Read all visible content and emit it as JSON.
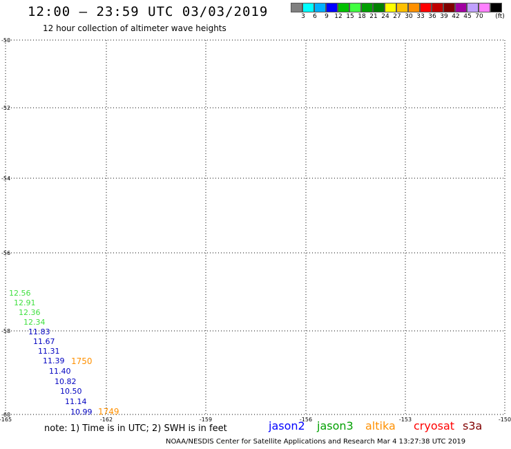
{
  "header": {
    "title": "12:00 – 23:59 UTC 03/03/2019",
    "subtitle": "12 hour collection of altimeter wave heights"
  },
  "legend": {
    "unit": "(ft)",
    "items": [
      {
        "color": "#808080",
        "label": ""
      },
      {
        "color": "#00ffff",
        "label": "3"
      },
      {
        "color": "#00b0ff",
        "label": "6"
      },
      {
        "color": "#0000ff",
        "label": "9"
      },
      {
        "color": "#00c000",
        "label": "12"
      },
      {
        "color": "#40ff40",
        "label": "15"
      },
      {
        "color": "#00a000",
        "label": "18"
      },
      {
        "color": "#008000",
        "label": "21"
      },
      {
        "color": "#ffff00",
        "label": "24"
      },
      {
        "color": "#ffc000",
        "label": "27"
      },
      {
        "color": "#ff9000",
        "label": "30"
      },
      {
        "color": "#ff0000",
        "label": "33"
      },
      {
        "color": "#c00000",
        "label": "36"
      },
      {
        "color": "#800000",
        "label": "39"
      },
      {
        "color": "#a000a0",
        "label": "42"
      },
      {
        "color": "#c0a0ff",
        "label": "45"
      },
      {
        "color": "#ff80ff",
        "label": "70"
      },
      {
        "color": "#000000",
        "label": ""
      }
    ]
  },
  "map": {
    "lat_labels": [
      "-50",
      "-52",
      "-54",
      "-56",
      "-58",
      "-60"
    ],
    "lon_labels": [
      "-165",
      "-162",
      "-159",
      "-156",
      "-153",
      "-150"
    ],
    "grid_line_color": "#000000",
    "wave_heights": [
      {
        "value": "12.56",
        "color": "#40e040"
      },
      {
        "value": "12.91",
        "color": "#40e040"
      },
      {
        "value": "12.36",
        "color": "#40e040"
      },
      {
        "value": "12.34",
        "color": "#40e040"
      },
      {
        "value": "11.83",
        "color": "#0000c0"
      },
      {
        "value": "11.67",
        "color": "#0000c0"
      },
      {
        "value": "11.31",
        "color": "#0000c0"
      },
      {
        "value": "11.39",
        "color": "#0000c0"
      },
      {
        "value": "11.40",
        "color": "#0000c0"
      },
      {
        "value": "10.82",
        "color": "#0000c0"
      },
      {
        "value": "10.50",
        "color": "#0000c0"
      },
      {
        "value": "11.14",
        "color": "#0000c0"
      },
      {
        "value": "10.99",
        "color": "#0000c0"
      }
    ],
    "time_stamps": [
      {
        "value": "1750",
        "color": "#ff9000"
      },
      {
        "value": "1749",
        "color": "#ff9000"
      }
    ]
  },
  "footer": {
    "note": "note:  1) Time is in UTC;  2) SWH is in feet",
    "credit": "NOAA/NESDIS Center for Satellite Applications and Research    Mar  4 13:27:38 UTC 2019",
    "satellites": [
      {
        "name": "jason2",
        "color": "#0000ff"
      },
      {
        "name": "jason3",
        "color": "#00a000"
      },
      {
        "name": "altika",
        "color": "#ff9000"
      },
      {
        "name": "cryosat",
        "color": "#ff0000"
      },
      {
        "name": "s3a",
        "color": "#800000"
      }
    ]
  }
}
